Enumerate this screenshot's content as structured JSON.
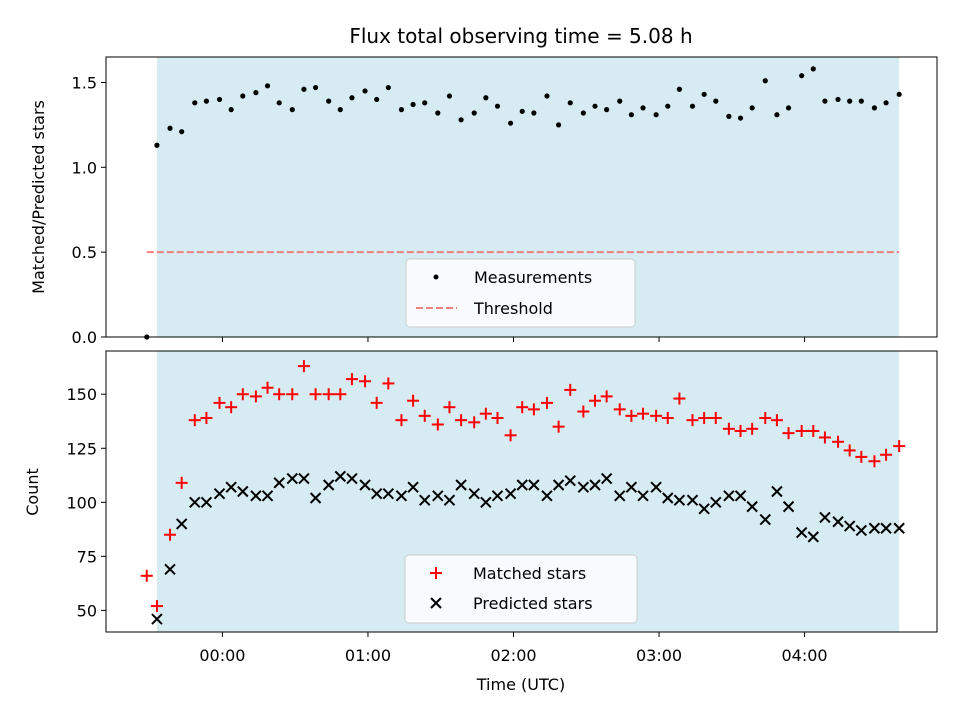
{
  "chart_data": {
    "type": "scatter",
    "title": "Flux total observing time = 5.08 h",
    "xlabel": "Time (UTC)",
    "x_unit": "hours relative to 00:00 UTC",
    "x_ticks": [
      {
        "value": 0,
        "label": "00:00"
      },
      {
        "value": 1,
        "label": "01:00"
      },
      {
        "value": 2,
        "label": "02:00"
      },
      {
        "value": 3,
        "label": "03:00"
      },
      {
        "value": 4,
        "label": "04:00"
      }
    ],
    "xlim": [
      -0.8,
      4.91
    ],
    "shaded_interval": [
      -0.45,
      4.65
    ],
    "top_panel": {
      "ylabel": "Matched/Predicted stars",
      "ylim": [
        0,
        1.65
      ],
      "y_ticks": [
        0,
        0.5,
        1.0,
        1.5
      ],
      "y_tick_labels": [
        "0.0",
        "0.5",
        "1.0",
        "1.5"
      ],
      "threshold": {
        "value": 0.5,
        "x_range": [
          -0.52,
          4.65
        ],
        "color": "#f08080"
      },
      "legend": {
        "location": "lower-center",
        "entries": [
          "Measurements",
          "Threshold"
        ]
      },
      "series": [
        {
          "name": "Measurements",
          "marker": "dot",
          "color": "#000000",
          "x": [
            -0.52,
            -0.45,
            -0.36,
            -0.28,
            -0.19,
            -0.11,
            -0.02,
            0.06,
            0.14,
            0.23,
            0.31,
            0.39,
            0.48,
            0.56,
            0.64,
            0.73,
            0.81,
            0.89,
            0.98,
            1.06,
            1.14,
            1.23,
            1.31,
            1.39,
            1.48,
            1.56,
            1.64,
            1.73,
            1.81,
            1.89,
            1.98,
            2.06,
            2.14,
            2.23,
            2.31,
            2.39,
            2.48,
            2.56,
            2.64,
            2.73,
            2.81,
            2.89,
            2.98,
            3.06,
            3.14,
            3.23,
            3.31,
            3.39,
            3.48,
            3.56,
            3.64,
            3.73,
            3.81,
            3.89,
            3.98,
            4.06,
            4.14,
            4.23,
            4.31,
            4.39,
            4.48,
            4.56,
            4.65
          ],
          "y": [
            0.0,
            1.13,
            1.23,
            1.21,
            1.38,
            1.39,
            1.4,
            1.34,
            1.42,
            1.44,
            1.48,
            1.38,
            1.34,
            1.46,
            1.47,
            1.39,
            1.34,
            1.41,
            1.45,
            1.4,
            1.47,
            1.34,
            1.37,
            1.38,
            1.32,
            1.42,
            1.28,
            1.32,
            1.41,
            1.36,
            1.26,
            1.33,
            1.32,
            1.42,
            1.25,
            1.38,
            1.32,
            1.36,
            1.34,
            1.39,
            1.31,
            1.35,
            1.31,
            1.36,
            1.46,
            1.36,
            1.43,
            1.39,
            1.3,
            1.29,
            1.35,
            1.51,
            1.31,
            1.35,
            1.54,
            1.58,
            1.39,
            1.4,
            1.39,
            1.39,
            1.35,
            1.38,
            1.43
          ]
        }
      ]
    },
    "bottom_panel": {
      "ylabel": "Count",
      "ylim": [
        40,
        170
      ],
      "y_ticks": [
        50,
        75,
        100,
        125,
        150
      ],
      "y_tick_labels": [
        "50",
        "75",
        "100",
        "125",
        "150"
      ],
      "legend": {
        "location": "lower-center",
        "entries": [
          "Matched stars",
          "Predicted stars"
        ]
      },
      "series": [
        {
          "name": "Matched stars",
          "marker": "plus",
          "color": "#ff0000",
          "x": [
            -0.52,
            -0.45,
            -0.36,
            -0.28,
            -0.19,
            -0.11,
            -0.02,
            0.06,
            0.14,
            0.23,
            0.31,
            0.39,
            0.48,
            0.56,
            0.64,
            0.73,
            0.81,
            0.89,
            0.98,
            1.06,
            1.14,
            1.23,
            1.31,
            1.39,
            1.48,
            1.56,
            1.64,
            1.73,
            1.81,
            1.89,
            1.98,
            2.06,
            2.14,
            2.23,
            2.31,
            2.39,
            2.48,
            2.56,
            2.64,
            2.73,
            2.81,
            2.89,
            2.98,
            3.06,
            3.14,
            3.23,
            3.31,
            3.39,
            3.48,
            3.56,
            3.64,
            3.73,
            3.81,
            3.89,
            3.98,
            4.06,
            4.14,
            4.23,
            4.31,
            4.39,
            4.48,
            4.56,
            4.65
          ],
          "y": [
            66,
            52,
            85,
            109,
            138,
            139,
            146,
            144,
            150,
            149,
            153,
            150,
            150,
            163,
            150,
            150,
            150,
            157,
            156,
            146,
            155,
            138,
            147,
            140,
            136,
            144,
            138,
            137,
            141,
            139,
            131,
            144,
            143,
            146,
            135,
            152,
            142,
            147,
            149,
            143,
            140,
            141,
            140,
            139,
            148,
            138,
            139,
            139,
            134,
            133,
            134,
            139,
            138,
            132,
            133,
            133,
            130,
            128,
            124,
            121,
            119,
            122,
            126
          ]
        },
        {
          "name": "Predicted stars",
          "marker": "x",
          "color": "#000000",
          "x": [
            -0.45,
            -0.36,
            -0.28,
            -0.19,
            -0.11,
            -0.02,
            0.06,
            0.14,
            0.23,
            0.31,
            0.39,
            0.48,
            0.56,
            0.64,
            0.73,
            0.81,
            0.89,
            0.98,
            1.06,
            1.14,
            1.23,
            1.31,
            1.39,
            1.48,
            1.56,
            1.64,
            1.73,
            1.81,
            1.89,
            1.98,
            2.06,
            2.14,
            2.23,
            2.31,
            2.39,
            2.48,
            2.56,
            2.64,
            2.73,
            2.81,
            2.89,
            2.98,
            3.06,
            3.14,
            3.23,
            3.31,
            3.39,
            3.48,
            3.56,
            3.64,
            3.73,
            3.81,
            3.89,
            3.98,
            4.06,
            4.14,
            4.23,
            4.31,
            4.39,
            4.48,
            4.56,
            4.65
          ],
          "y": [
            46,
            69,
            90,
            100,
            100,
            104,
            107,
            105,
            103,
            103,
            109,
            111,
            111,
            102,
            108,
            112,
            111,
            108,
            104,
            104,
            103,
            107,
            101,
            103,
            101,
            108,
            104,
            100,
            103,
            104,
            108,
            108,
            103,
            108,
            110,
            107,
            108,
            111,
            103,
            107,
            103,
            107,
            102,
            101,
            101,
            97,
            100,
            103,
            103,
            98,
            92,
            105,
            98,
            86,
            84,
            93,
            91,
            89,
            87,
            88,
            88,
            88
          ]
        }
      ]
    }
  }
}
